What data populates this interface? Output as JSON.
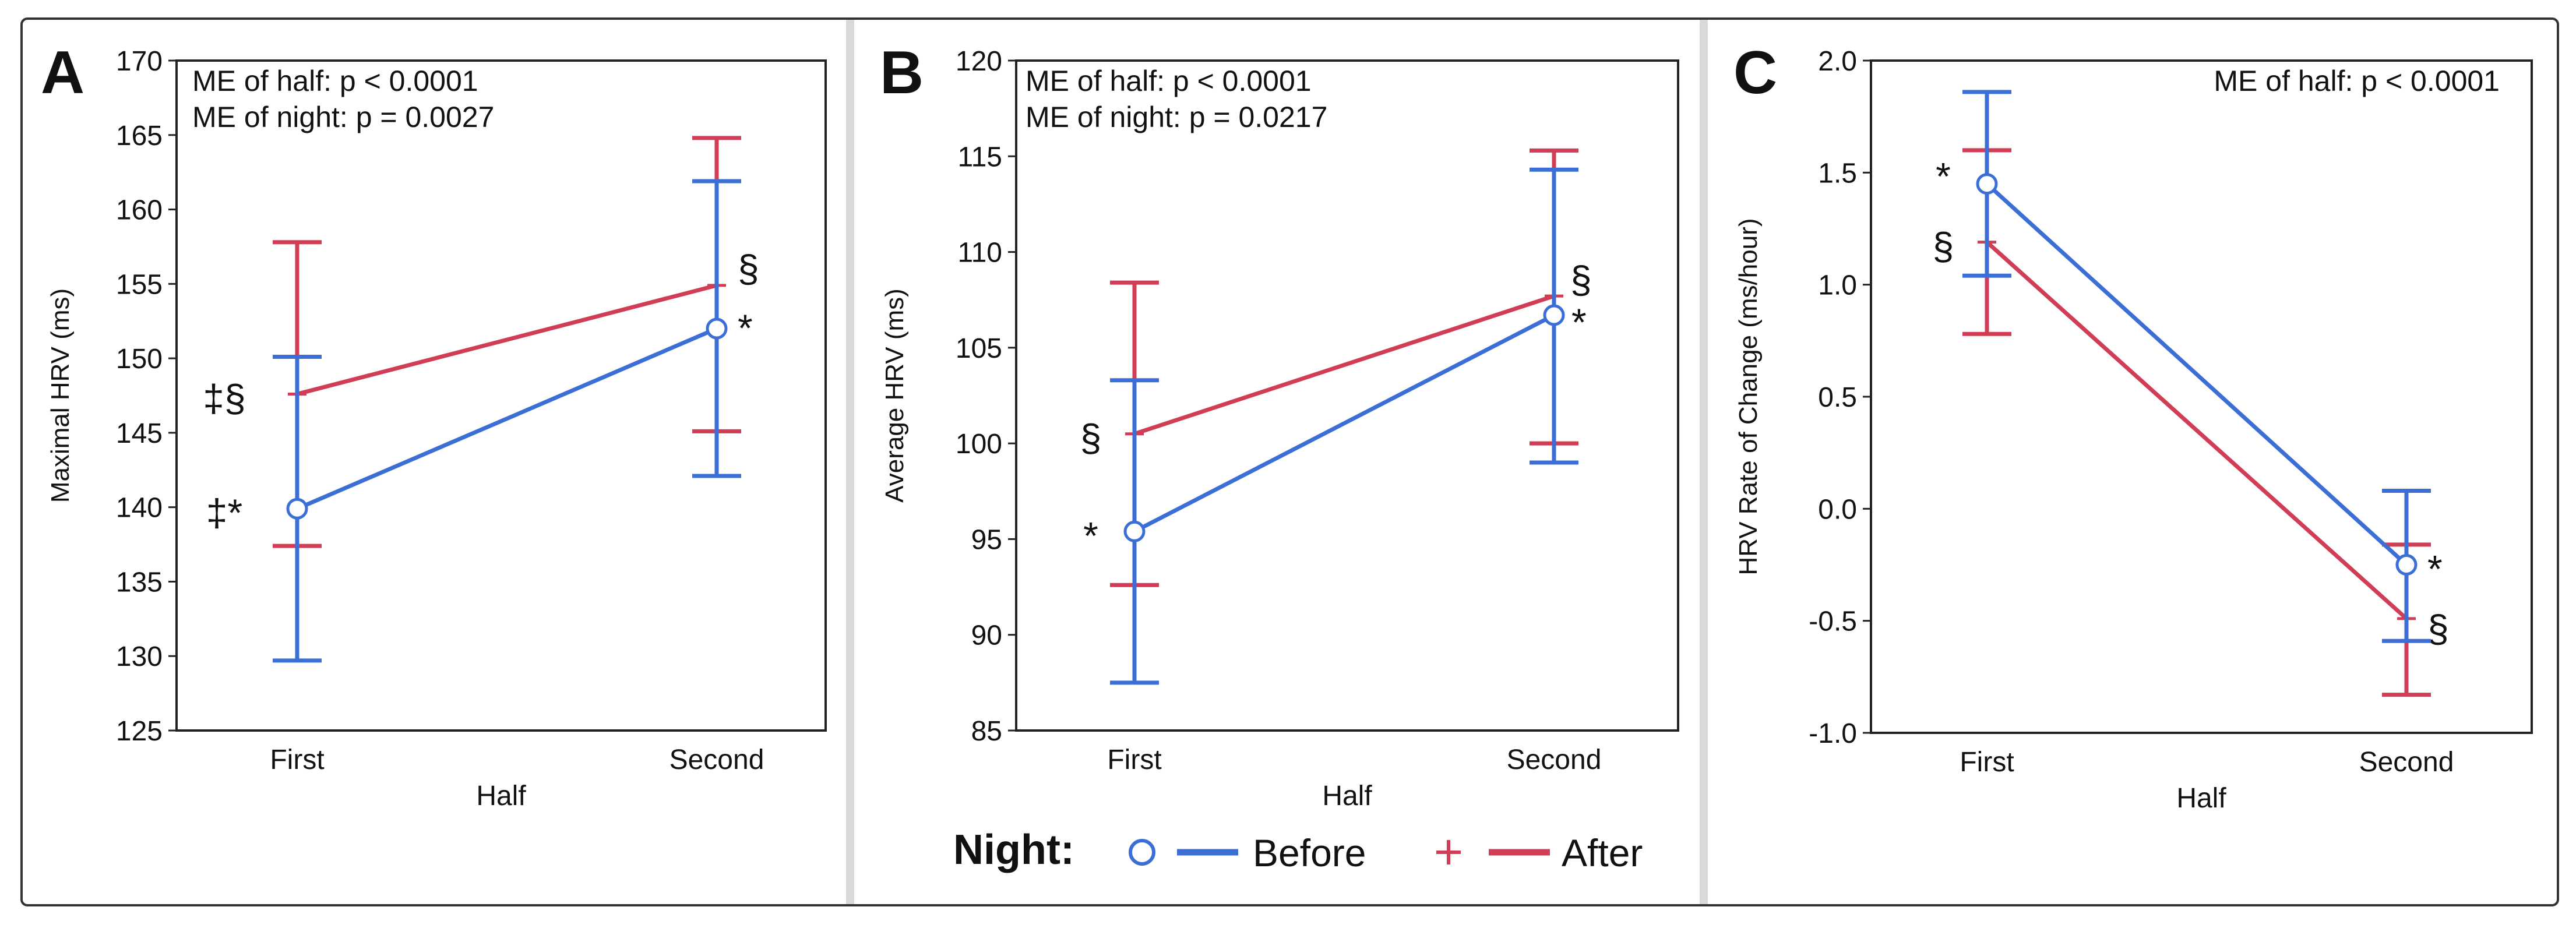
{
  "colors": {
    "before": "#3b6fd6",
    "after": "#d03d55",
    "axis": "#222222",
    "frame": "#333333",
    "separator": "#d9d9d9",
    "text": "#111111"
  },
  "legend": {
    "title": "Night:",
    "before_label": "Before",
    "after_label": "After",
    "before_marker": "○",
    "after_marker": "+"
  },
  "chart_data": [
    {
      "panel": "A",
      "type": "line",
      "categories": [
        "First",
        "Second"
      ],
      "xlabel": "Half",
      "ylabel": "Maximal HRV (ms)",
      "ylim": [
        125,
        170
      ],
      "yticks": [
        125,
        130,
        135,
        140,
        145,
        150,
        155,
        160,
        165,
        170
      ],
      "annotations": [
        "ME of half: p < 0.0001",
        "ME of night: p = 0.0027"
      ],
      "series": [
        {
          "name": "Before",
          "values": [
            139.9,
            152.0
          ],
          "lower": [
            129.7,
            142.1
          ],
          "upper": [
            150.1,
            161.9
          ],
          "symbols": [
            "‡*",
            "*"
          ]
        },
        {
          "name": "After",
          "values": [
            147.6,
            154.9
          ],
          "lower": [
            137.4,
            145.1
          ],
          "upper": [
            157.8,
            164.8
          ],
          "symbols": [
            "‡§",
            "§"
          ]
        }
      ]
    },
    {
      "panel": "B",
      "type": "line",
      "categories": [
        "First",
        "Second"
      ],
      "xlabel": "Half",
      "ylabel": "Average HRV (ms)",
      "ylim": [
        85,
        120
      ],
      "yticks": [
        85,
        90,
        95,
        100,
        105,
        110,
        115,
        120
      ],
      "annotations": [
        "ME of half: p < 0.0001",
        "ME of night: p = 0.0217"
      ],
      "series": [
        {
          "name": "Before",
          "values": [
            95.4,
            106.7
          ],
          "lower": [
            87.5,
            99.0
          ],
          "upper": [
            103.3,
            114.3
          ],
          "symbols": [
            "*",
            "*"
          ]
        },
        {
          "name": "After",
          "values": [
            100.5,
            107.7
          ],
          "lower": [
            92.6,
            100.0
          ],
          "upper": [
            108.4,
            115.3
          ],
          "symbols": [
            "§",
            "§"
          ]
        }
      ]
    },
    {
      "panel": "C",
      "type": "line",
      "categories": [
        "First",
        "Second"
      ],
      "xlabel": "Half",
      "ylabel": "HRV Rate of Change (ms/hour)",
      "ylim": [
        -1.0,
        2.0
      ],
      "yticks": [
        -1.0,
        -0.5,
        0.0,
        0.5,
        1.0,
        1.5,
        2.0
      ],
      "annotations": [
        "ME of half: p < 0.0001"
      ],
      "series": [
        {
          "name": "Before",
          "values": [
            1.45,
            -0.25
          ],
          "lower": [
            1.04,
            -0.59
          ],
          "upper": [
            1.86,
            0.08
          ],
          "symbols": [
            "*",
            "*"
          ]
        },
        {
          "name": "After",
          "values": [
            1.19,
            -0.49
          ],
          "lower": [
            0.78,
            -0.83
          ],
          "upper": [
            1.6,
            -0.16
          ],
          "symbols": [
            "§",
            "§"
          ]
        }
      ]
    }
  ]
}
